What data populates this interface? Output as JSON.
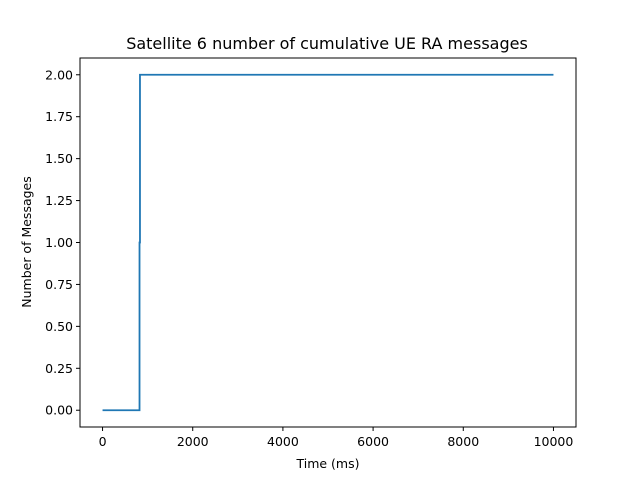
{
  "chart_data": {
    "type": "line",
    "title": "Satellite 6 number of cumulative UE RA messages",
    "xlabel": "Time (ms)",
    "ylabel": "Number of Messages",
    "xlim": [
      -500,
      10500
    ],
    "ylim": [
      -0.1,
      2.1
    ],
    "xticks": [
      0,
      2000,
      4000,
      6000,
      8000,
      10000
    ],
    "xtick_labels": [
      "0",
      "2000",
      "4000",
      "6000",
      "8000",
      "10000"
    ],
    "yticks": [
      0,
      0.25,
      0.5,
      0.75,
      1.0,
      1.25,
      1.5,
      1.75,
      2.0
    ],
    "ytick_labels": [
      "0.00",
      "0.25",
      "0.50",
      "0.75",
      "1.00",
      "1.25",
      "1.50",
      "1.75",
      "2.00"
    ],
    "grid": false,
    "series": [
      {
        "color": "#1f77b4",
        "x": [
          0,
          820,
          820,
          830,
          830,
          10000
        ],
        "y": [
          0,
          0,
          1,
          1,
          2,
          2
        ]
      }
    ]
  }
}
